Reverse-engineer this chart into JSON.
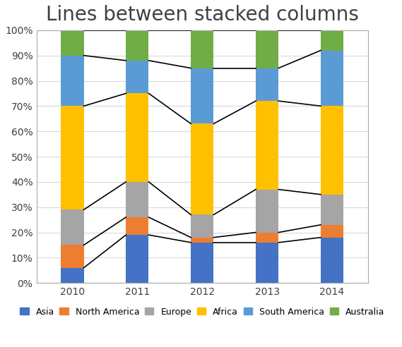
{
  "title": "Lines between stacked columns",
  "years": [
    "2010",
    "2011",
    "2012",
    "2013",
    "2014"
  ],
  "series": {
    "Asia": [
      6,
      19,
      16,
      16,
      18
    ],
    "North America": [
      9,
      7,
      2,
      4,
      5
    ],
    "Europe": [
      14,
      14,
      9,
      17,
      12
    ],
    "Africa": [
      41,
      35,
      36,
      35,
      35
    ],
    "South America": [
      20,
      13,
      22,
      13,
      22
    ],
    "Australia": [
      10,
      12,
      15,
      15,
      8
    ]
  },
  "colors": {
    "Asia": "#4472C4",
    "North America": "#ED7D31",
    "Europe": "#A5A5A5",
    "Africa": "#FFC000",
    "South America": "#5B9BD5",
    "Australia": "#70AD47"
  },
  "legend_order": [
    "Asia",
    "North America",
    "Europe",
    "Africa",
    "South America",
    "Australia"
  ],
  "background_color": "#FFFFFF",
  "plot_background": "#FFFFFF",
  "title_fontsize": 20,
  "label_fontsize": 10,
  "legend_fontsize": 9,
  "bar_width": 0.35,
  "ylim": [
    0,
    100
  ],
  "yticks": [
    0,
    10,
    20,
    30,
    40,
    50,
    60,
    70,
    80,
    90,
    100
  ],
  "ytick_labels": [
    "0%",
    "10%",
    "20%",
    "30%",
    "40%",
    "50%",
    "60%",
    "70%",
    "80%",
    "90%",
    "100%"
  ],
  "line_color": "black",
  "line_width": 1.2,
  "grid_color": "#D9D9D9",
  "border_color": "#AAAAAA"
}
